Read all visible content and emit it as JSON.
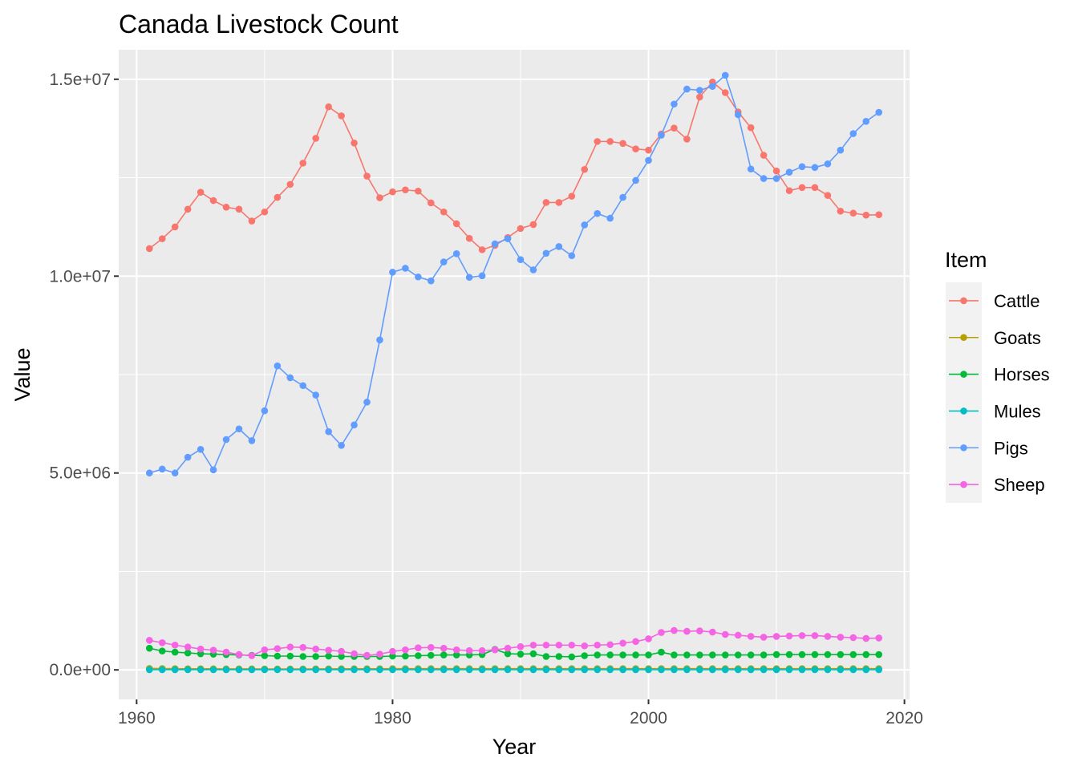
{
  "chart_data": {
    "type": "line",
    "title": "Canada  Livestock Count",
    "xlabel": "Year",
    "ylabel": "Value",
    "xlim": [
      1958.6,
      2020.4
    ],
    "ylim": [
      -750000,
      15750000
    ],
    "x_ticks": [
      1960,
      1980,
      2000,
      2020
    ],
    "x_tick_labels": [
      "1960",
      "1980",
      "2000",
      "2020"
    ],
    "y_ticks": [
      0,
      5000000,
      10000000,
      15000000
    ],
    "y_tick_labels": [
      "0.0e+00",
      "5.0e+06",
      "1.0e+07",
      "1.5e+07"
    ],
    "grid": true,
    "legend_title": "Item",
    "legend_position": "right",
    "x": [
      1961,
      1962,
      1963,
      1964,
      1965,
      1966,
      1967,
      1968,
      1969,
      1970,
      1971,
      1972,
      1973,
      1974,
      1975,
      1976,
      1977,
      1978,
      1979,
      1980,
      1981,
      1982,
      1983,
      1984,
      1985,
      1986,
      1987,
      1988,
      1989,
      1990,
      1991,
      1992,
      1993,
      1994,
      1995,
      1996,
      1997,
      1998,
      1999,
      2000,
      2001,
      2002,
      2003,
      2004,
      2005,
      2006,
      2007,
      2008,
      2009,
      2010,
      2011,
      2012,
      2013,
      2014,
      2015,
      2016,
      2017,
      2018
    ],
    "series": [
      {
        "name": "Cattle",
        "color": "#F8766D",
        "values": [
          10700000,
          10950000,
          11250000,
          11700000,
          12130000,
          11920000,
          11750000,
          11700000,
          11400000,
          11630000,
          12000000,
          12330000,
          12870000,
          13500000,
          14300000,
          14070000,
          13380000,
          12540000,
          11990000,
          12140000,
          12190000,
          12160000,
          11860000,
          11630000,
          11330000,
          10960000,
          10670000,
          10780000,
          10980000,
          11210000,
          11310000,
          11870000,
          11870000,
          12030000,
          12710000,
          13420000,
          13420000,
          13370000,
          13230000,
          13200000,
          13610000,
          13760000,
          13480000,
          14550000,
          14930000,
          14660000,
          14170000,
          13770000,
          13070000,
          12670000,
          12170000,
          12250000,
          12250000,
          12050000,
          11650000,
          11600000,
          11550000,
          11560000
        ]
      },
      {
        "name": "Goats",
        "color": "#B79F00",
        "values": [
          35000,
          33000,
          31000,
          29000,
          28000,
          27000,
          26000,
          25000,
          25000,
          24000,
          24000,
          24000,
          24000,
          25000,
          26000,
          27000,
          28000,
          28000,
          29000,
          30000,
          30000,
          30000,
          30000,
          30000,
          30000,
          30000,
          30000,
          30000,
          30000,
          30000,
          30000,
          30000,
          30000,
          30000,
          30000,
          30000,
          30000,
          30000,
          30000,
          30000,
          30000,
          30000,
          30000,
          30000,
          30000,
          30000,
          30000,
          30000,
          30000,
          30000,
          30000,
          30000,
          30000,
          30000,
          30000,
          30000,
          30000,
          30000
        ]
      },
      {
        "name": "Horses",
        "color": "#00BA38",
        "values": [
          550000,
          480000,
          450000,
          430000,
          410000,
          400000,
          390000,
          380000,
          370000,
          360000,
          350000,
          350000,
          340000,
          340000,
          350000,
          340000,
          340000,
          340000,
          340000,
          350000,
          350000,
          360000,
          370000,
          380000,
          380000,
          380000,
          390000,
          520000,
          410000,
          400000,
          410000,
          340000,
          340000,
          330000,
          360000,
          380000,
          380000,
          380000,
          380000,
          380000,
          450000,
          380000,
          380000,
          380000,
          380000,
          380000,
          380000,
          380000,
          380000,
          390000,
          390000,
          390000,
          390000,
          390000,
          390000,
          390000,
          390000,
          390000
        ]
      },
      {
        "name": "Mules",
        "color": "#00BFC4",
        "values": [
          5000,
          5000,
          5000,
          5000,
          5000,
          5000,
          5000,
          5000,
          5000,
          5000,
          5000,
          5000,
          5000,
          5000,
          5000,
          5000,
          5000,
          5000,
          5000,
          5000,
          5000,
          5000,
          5000,
          5000,
          5000,
          5000,
          5000,
          5000,
          5000,
          5000,
          5000,
          5000,
          5000,
          5000,
          5000,
          5000,
          5000,
          5000,
          5000,
          5000,
          5000,
          5000,
          5000,
          5000,
          5000,
          5000,
          5000,
          5000,
          5000,
          5000,
          5000,
          5000,
          5000,
          5000,
          5000,
          5000,
          5000,
          5000
        ]
      },
      {
        "name": "Pigs",
        "color": "#619CFF",
        "values": [
          5000000,
          5100000,
          5000000,
          5400000,
          5600000,
          5080000,
          5850000,
          6120000,
          5820000,
          6580000,
          7720000,
          7420000,
          7220000,
          6980000,
          6050000,
          5700000,
          6220000,
          6800000,
          8380000,
          10100000,
          10200000,
          9980000,
          9880000,
          10360000,
          10570000,
          9970000,
          10010000,
          10820000,
          10950000,
          10420000,
          10160000,
          10580000,
          10750000,
          10520000,
          11300000,
          11590000,
          11470000,
          12000000,
          12430000,
          12940000,
          13580000,
          14370000,
          14750000,
          14720000,
          14820000,
          15100000,
          14100000,
          12720000,
          12480000,
          12480000,
          12640000,
          12780000,
          12760000,
          12850000,
          13200000,
          13620000,
          13930000,
          14160000
        ]
      },
      {
        "name": "Sheep",
        "color": "#F564E3",
        "values": [
          750000,
          690000,
          630000,
          580000,
          530000,
          500000,
          450000,
          390000,
          360000,
          510000,
          540000,
          580000,
          570000,
          530000,
          500000,
          470000,
          410000,
          370000,
          400000,
          470000,
          510000,
          560000,
          570000,
          550000,
          510000,
          490000,
          490000,
          510000,
          550000,
          590000,
          630000,
          630000,
          630000,
          630000,
          610000,
          630000,
          640000,
          680000,
          720000,
          790000,
          950000,
          1000000,
          980000,
          990000,
          960000,
          900000,
          880000,
          850000,
          830000,
          850000,
          860000,
          870000,
          870000,
          850000,
          830000,
          820000,
          800000,
          810000
        ]
      }
    ]
  }
}
